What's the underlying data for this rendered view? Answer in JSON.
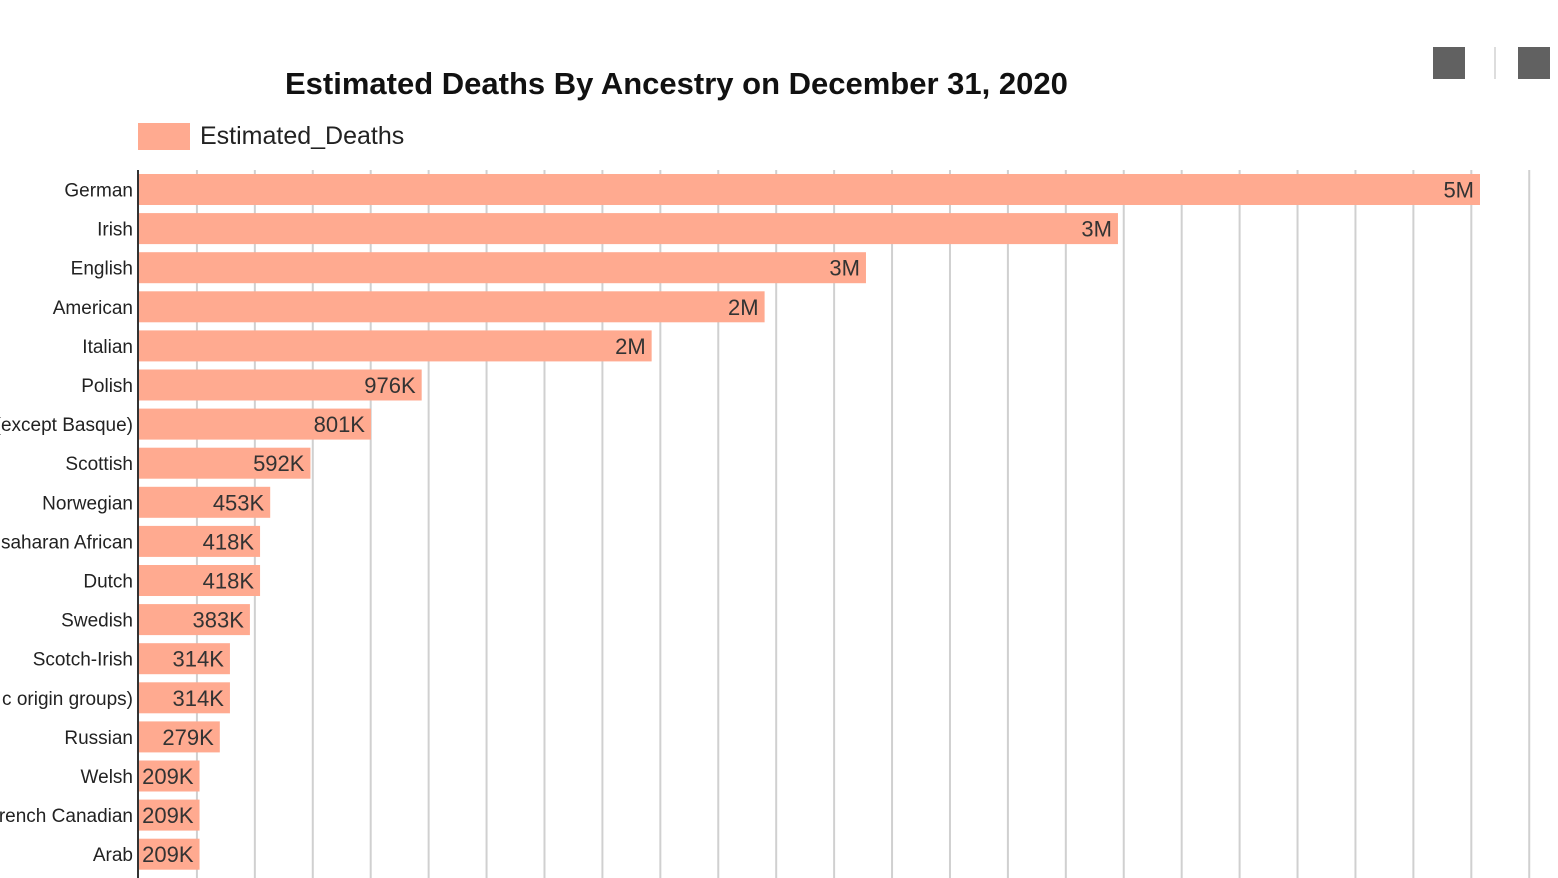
{
  "toolbar": {
    "button1": "square-icon",
    "button2": "square-icon"
  },
  "chart_data": {
    "type": "bar",
    "orientation": "horizontal",
    "title": "Estimated Deaths By Ancestry on December 31, 2020",
    "legend": {
      "position": "top-left",
      "entries": [
        "Estimated_Deaths"
      ]
    },
    "bar_color": "#FFAA90",
    "grid": true,
    "xlim": [
      0,
      5200000
    ],
    "categories": [
      "German",
      "Irish",
      "English",
      "American",
      "Italian",
      "Polish",
      "(except Basque)",
      "Scottish",
      "Norwegian",
      "saharan African",
      "Dutch",
      "Swedish",
      "Scotch-Irish",
      "c origin groups)",
      "Russian",
      "Welsh",
      "rench Canadian",
      "Arab"
    ],
    "series": [
      {
        "name": "Estimated_Deaths",
        "values": [
          4630000,
          3380000,
          2510000,
          2160000,
          1770000,
          976000,
          801000,
          592000,
          453000,
          418000,
          418000,
          383000,
          314000,
          314000,
          279000,
          209000,
          209000,
          209000
        ],
        "labels": [
          "5M",
          "3M",
          "3M",
          "2M",
          "2M",
          "976K",
          "801K",
          "592K",
          "453K",
          "418K",
          "418K",
          "383K",
          "314K",
          "314K",
          "279K",
          "209K",
          "209K",
          "209K"
        ]
      }
    ]
  }
}
